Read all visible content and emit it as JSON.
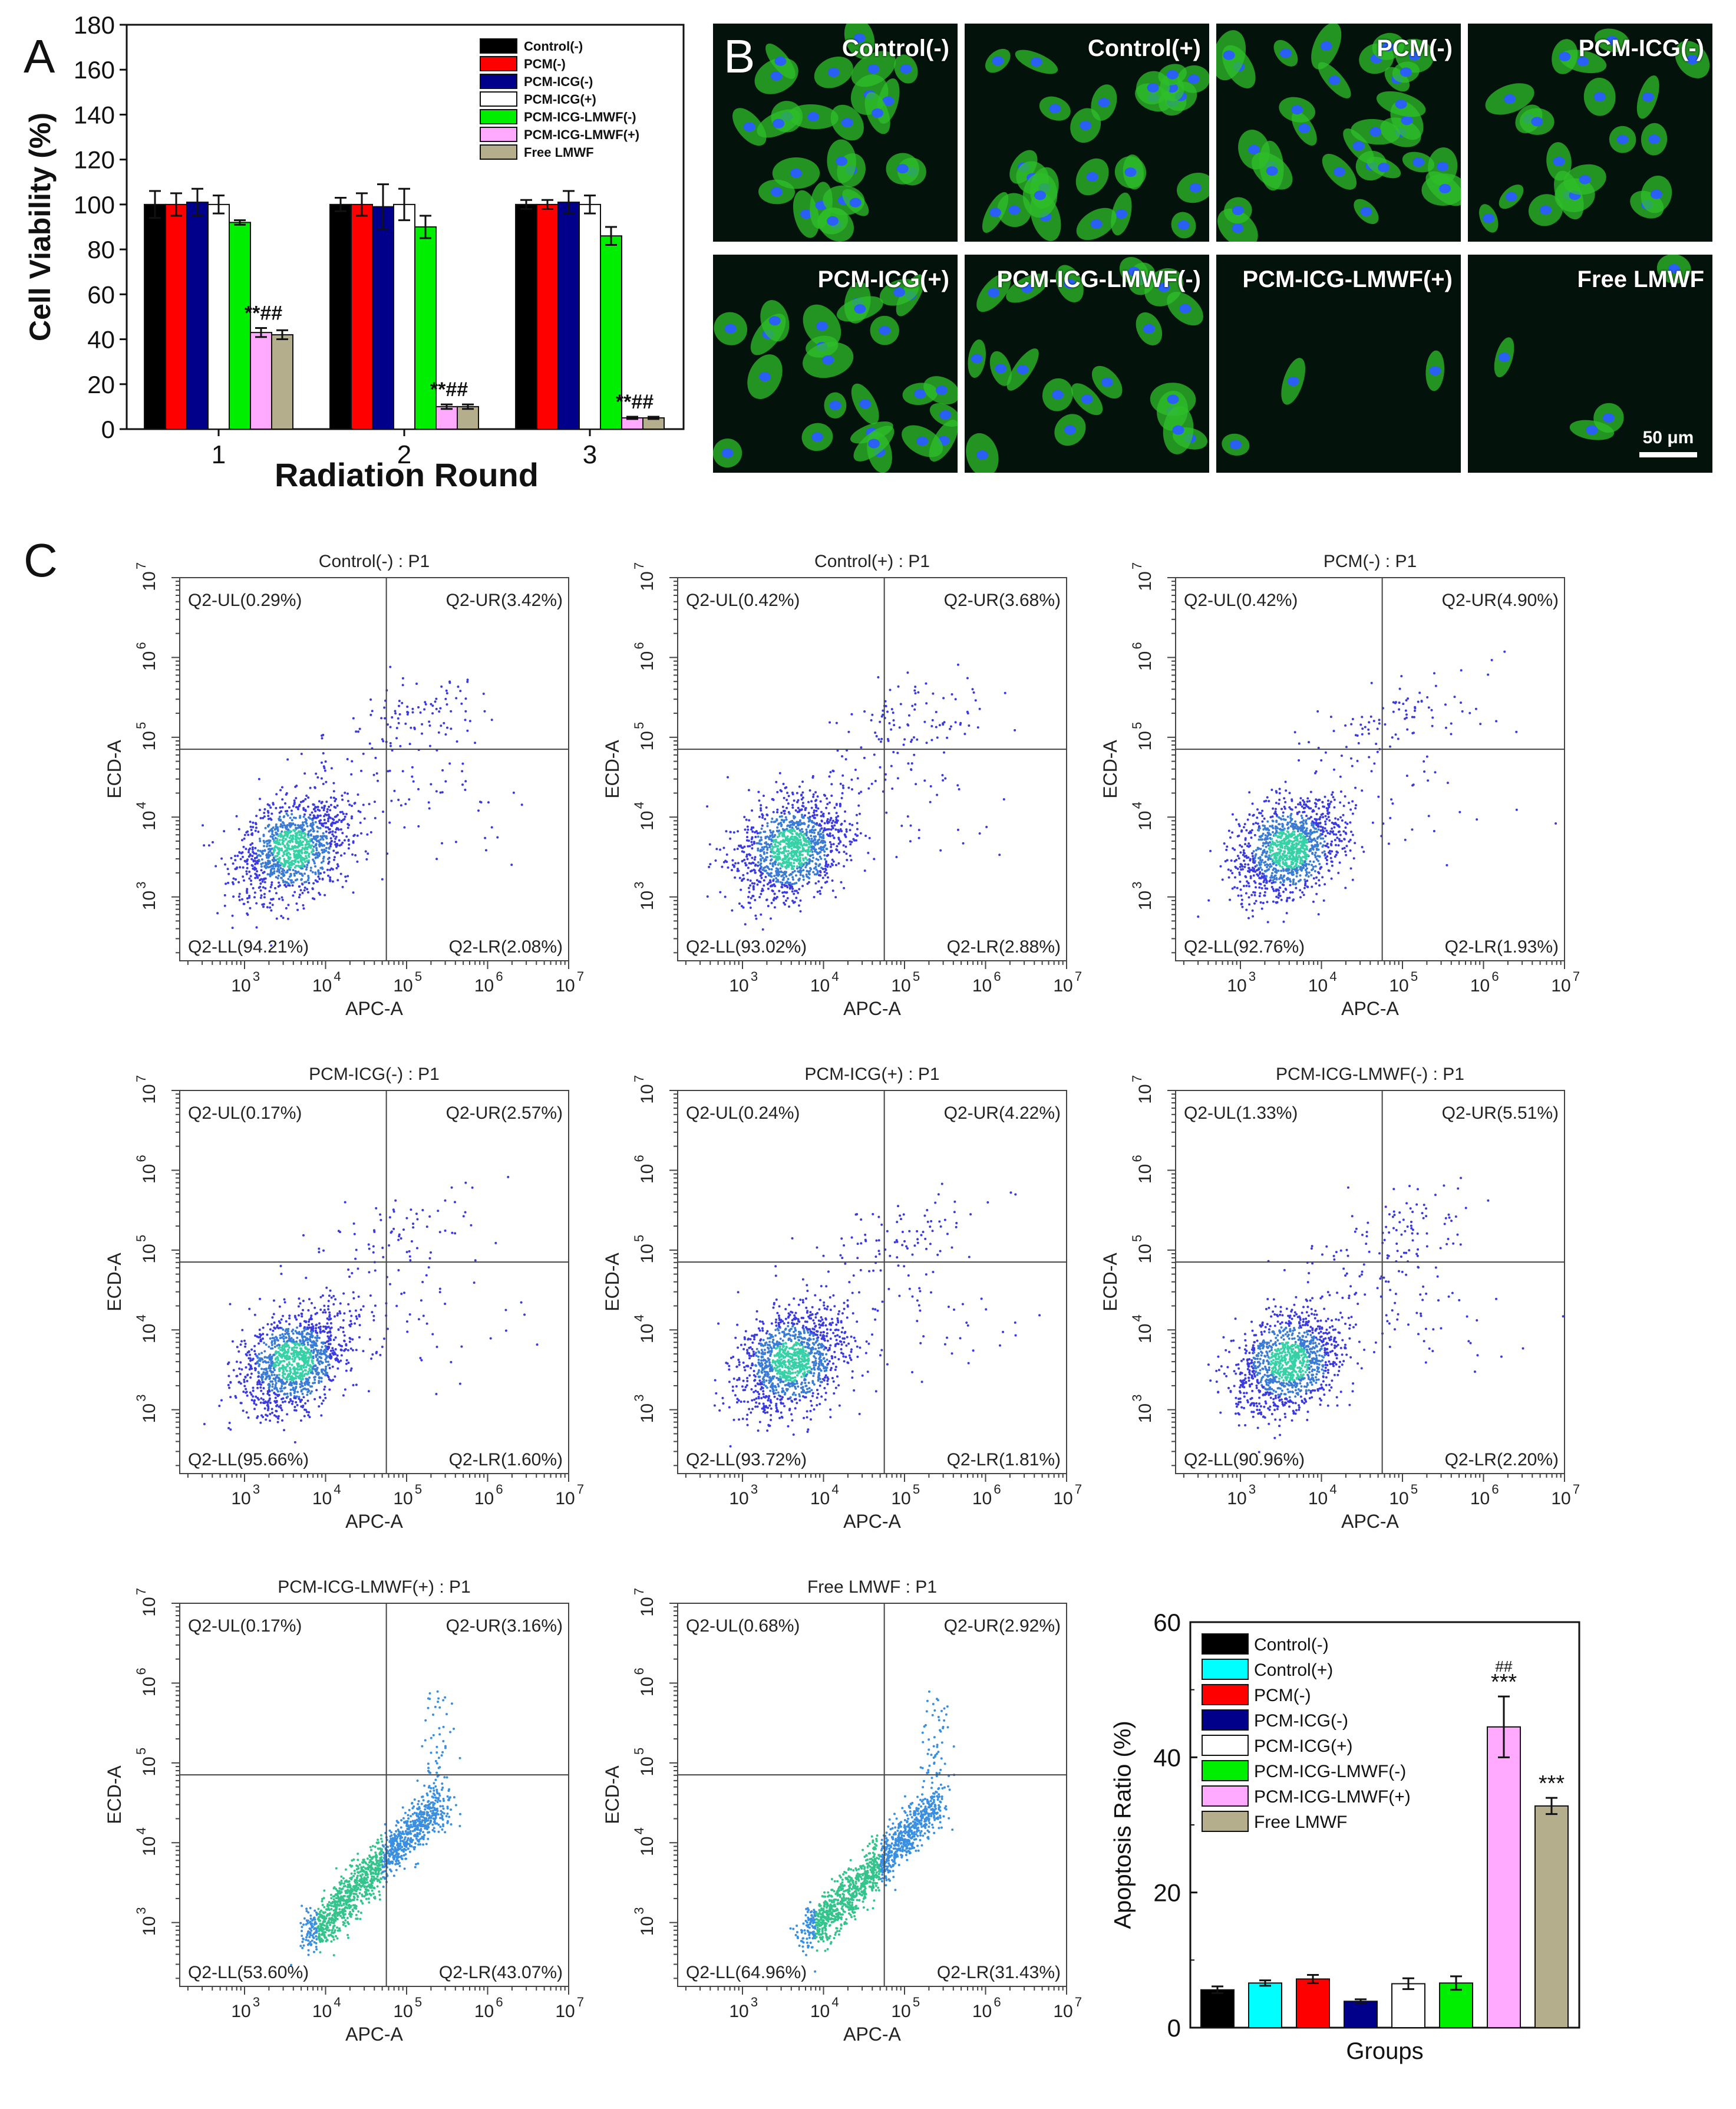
{
  "panel_letters": {
    "a": "A",
    "b": "B",
    "c": "C"
  },
  "legend_series": [
    "Control(-)",
    "PCM(-)",
    "PCM-ICG(-)",
    "PCM-ICG(+)",
    "PCM-ICG-LMWF(-)",
    "PCM-ICG-LMWF(+)",
    "Free LMWF"
  ],
  "colors": {
    "Control(-)": "#000000",
    "Control(+)": "#00ffff",
    "PCM(-)": "#ff0000",
    "PCM-ICG(-)": "#00008b",
    "PCM-ICG(+)": "#ffffff",
    "PCM-ICG-LMWF(-)": "#00ee00",
    "PCM-ICG-LMWF(+)": "#ffaaff",
    "Free LMWF": "#b5ae8c"
  },
  "chart_data": [
    {
      "type": "bar",
      "title": "",
      "xlabel": "Radiation Round",
      "ylabel": "Cell Viability (%)",
      "ylim": [
        0,
        180
      ],
      "yticks": [
        "0",
        "20",
        "40",
        "60",
        "80",
        "100",
        "120",
        "140",
        "160",
        "180"
      ],
      "categories": [
        "1",
        "2",
        "3"
      ],
      "series": [
        {
          "name": "Control(-)",
          "values": [
            100,
            100,
            100
          ],
          "errors": [
            6,
            3,
            2
          ]
        },
        {
          "name": "PCM(-)",
          "values": [
            100,
            100,
            100
          ],
          "errors": [
            5,
            5,
            2
          ]
        },
        {
          "name": "PCM-ICG(-)",
          "values": [
            101,
            99,
            101
          ],
          "errors": [
            6,
            10,
            5
          ]
        },
        {
          "name": "PCM-ICG(+)",
          "values": [
            100,
            100,
            100
          ],
          "errors": [
            4,
            7,
            4
          ]
        },
        {
          "name": "PCM-ICG-LMWF(-)",
          "values": [
            92,
            90,
            86
          ],
          "errors": [
            1,
            5,
            4
          ]
        },
        {
          "name": "PCM-ICG-LMWF(+)",
          "values": [
            43,
            10,
            5
          ],
          "errors": [
            2,
            1,
            0.5
          ]
        },
        {
          "name": "Free LMWF",
          "values": [
            42,
            10,
            5
          ],
          "errors": [
            2,
            1,
            0.5
          ]
        }
      ],
      "annotations": [
        "**##",
        "**##",
        "**##"
      ]
    },
    {
      "type": "bar",
      "xlabel": "Groups",
      "ylabel": "Apoptosis Ratio (%)",
      "ylim": [
        0,
        60
      ],
      "yticks": [
        "0",
        "20",
        "40",
        "60"
      ],
      "categories": [
        "Control(-)",
        "Control(+)",
        "PCM(-)",
        "PCM-ICG(-)",
        "PCM-ICG(+)",
        "PCM-ICG-LMWF(-)",
        "PCM-ICG-LMWF(+)",
        "Free LMWF"
      ],
      "values": [
        5.6,
        6.6,
        7.2,
        3.9,
        6.5,
        6.6,
        44.5,
        32.8
      ],
      "errors": [
        0.5,
        0.4,
        0.6,
        0.3,
        0.8,
        1.0,
        4.5,
        1.2
      ],
      "annotations": [
        {
          "index": 6,
          "lines": [
            "##",
            "***"
          ]
        },
        {
          "index": 7,
          "lines": [
            "***"
          ]
        }
      ]
    }
  ],
  "microscopy": {
    "panels": [
      {
        "label": "Control(-)",
        "density": 26
      },
      {
        "label": "Control(+)",
        "density": 26
      },
      {
        "label": "PCM(-)",
        "density": 30
      },
      {
        "label": "PCM-ICG(-)",
        "density": 20
      },
      {
        "label": "PCM-ICG(+)",
        "density": 24
      },
      {
        "label": "PCM-ICG-LMWF(-)",
        "density": 20
      },
      {
        "label": "PCM-ICG-LMWF(+)",
        "density": 3
      },
      {
        "label": "Free LMWF",
        "density": 4
      }
    ],
    "scale_label": "50 μm"
  },
  "flow_axes": {
    "x_label": "APC-A",
    "y_label": "ECD-A",
    "x_ticks": [
      "10",
      "10",
      "10",
      "10",
      "10"
    ],
    "x_exp": [
      "3",
      "4",
      "5",
      "6",
      "7"
    ],
    "y_ticks": [
      "10",
      "10",
      "10",
      "10",
      "10"
    ],
    "y_exp": [
      "3",
      "4",
      "5",
      "6",
      "7"
    ]
  },
  "flow_plots": [
    {
      "title": "Control(-) : P1",
      "ul": "Q2-UL(0.29%)",
      "ur": "Q2-UR(3.42%)",
      "ll": "Q2-LL(94.21%)",
      "lr": "Q2-LR(2.08%)",
      "style": "normal"
    },
    {
      "title": "Control(+) : P1",
      "ul": "Q2-UL(0.42%)",
      "ur": "Q2-UR(3.68%)",
      "ll": "Q2-LL(93.02%)",
      "lr": "Q2-LR(2.88%)",
      "style": "normal"
    },
    {
      "title": "PCM(-) : P1",
      "ul": "Q2-UL(0.42%)",
      "ur": "Q2-UR(4.90%)",
      "ll": "Q2-LL(92.76%)",
      "lr": "Q2-LR(1.93%)",
      "style": "normal"
    },
    {
      "title": "PCM-ICG(-) : P1",
      "ul": "Q2-UL(0.17%)",
      "ur": "Q2-UR(2.57%)",
      "ll": "Q2-LL(95.66%)",
      "lr": "Q2-LR(1.60%)",
      "style": "normal"
    },
    {
      "title": "PCM-ICG(+) : P1",
      "ul": "Q2-UL(0.24%)",
      "ur": "Q2-UR(4.22%)",
      "ll": "Q2-LL(93.72%)",
      "lr": "Q2-LR(1.81%)",
      "style": "normal"
    },
    {
      "title": "PCM-ICG-LMWF(-) : P1",
      "ul": "Q2-UL(1.33%)",
      "ur": "Q2-UR(5.51%)",
      "ll": "Q2-LL(90.96%)",
      "lr": "Q2-LR(2.20%)",
      "style": "normal"
    },
    {
      "title": "PCM-ICG-LMWF(+) : P1",
      "ul": "Q2-UL(0.17%)",
      "ur": "Q2-UR(3.16%)",
      "ll": "Q2-LL(53.60%)",
      "lr": "Q2-LR(43.07%)",
      "style": "shift"
    },
    {
      "title": "Free LMWF : P1",
      "ul": "Q2-UL(0.68%)",
      "ur": "Q2-UR(2.92%)",
      "ll": "Q2-LL(64.96%)",
      "lr": "Q2-LR(31.43%)",
      "style": "shift"
    }
  ]
}
